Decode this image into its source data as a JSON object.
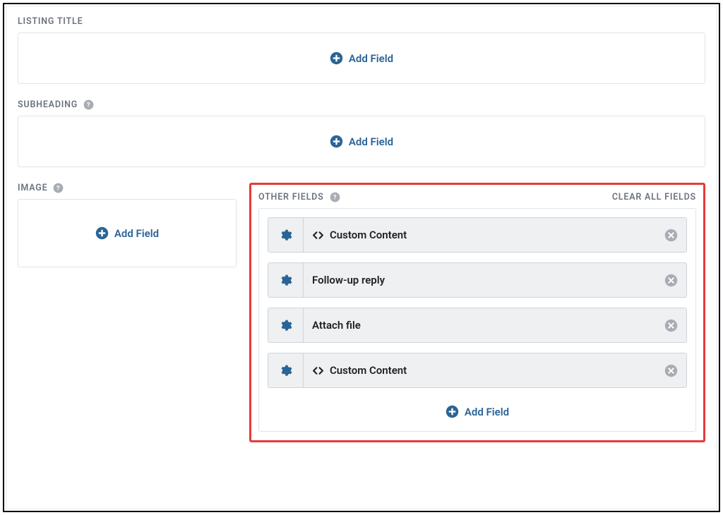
{
  "colors": {
    "accent": "#2a6496",
    "label": "#6b7280",
    "highlight_border": "#e53b39",
    "field_bg": "#eef0f2",
    "field_border": "#cfd3d8",
    "remove_icon": "#a8adb3",
    "gear_icon": "#2a6496",
    "text": "#202124"
  },
  "sections": {
    "listing_title": {
      "label": "LISTING TITLE",
      "add_label": "Add Field"
    },
    "subheading": {
      "label": "SUBHEADING",
      "add_label": "Add Field"
    },
    "image": {
      "label": "IMAGE",
      "add_label": "Add Field"
    },
    "other_fields": {
      "label": "OTHER FIELDS",
      "clear_label": "CLEAR ALL FIELDS",
      "add_label": "Add Field",
      "items": [
        {
          "label": "Custom Content",
          "has_code_icon": true
        },
        {
          "label": "Follow-up reply",
          "has_code_icon": false
        },
        {
          "label": "Attach file",
          "has_code_icon": false
        },
        {
          "label": "Custom Content",
          "has_code_icon": true
        }
      ]
    }
  }
}
